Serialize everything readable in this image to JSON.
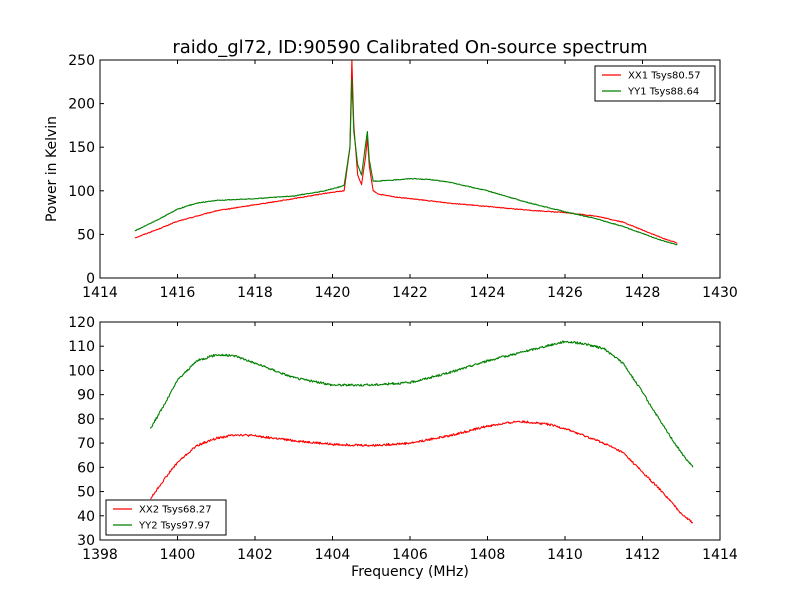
{
  "figure": {
    "title": "raido_gl72, ID:90590 Calibrated On-source spectrum",
    "xlabel": "Frequency (MHz)",
    "top_ylabel": "Power in Kelvin"
  },
  "colors": {
    "xx": "#ff0000",
    "yy": "#008000"
  },
  "chart_data": [
    {
      "type": "line",
      "xlim": [
        1414,
        1430
      ],
      "ylim": [
        0,
        250
      ],
      "xticks": [
        1414,
        1416,
        1418,
        1420,
        1422,
        1424,
        1426,
        1428,
        1430
      ],
      "yticks": [
        0,
        50,
        100,
        150,
        200,
        250
      ],
      "ylabel": "Power in Kelvin",
      "legend_position": "top-right",
      "series": [
        {
          "name": "XX1 Tsys80.57",
          "color": "#ff0000",
          "x": [
            1414.9,
            1415.5,
            1416.0,
            1416.5,
            1417.0,
            1418.0,
            1419.0,
            1419.8,
            1420.3,
            1420.45,
            1420.5,
            1420.55,
            1420.65,
            1420.75,
            1420.85,
            1420.9,
            1420.95,
            1421.05,
            1421.2,
            1421.6,
            1422.0,
            1423.0,
            1424.0,
            1425.0,
            1426.0,
            1426.8,
            1427.5,
            1428.0,
            1428.5,
            1428.9
          ],
          "y": [
            46,
            56,
            65,
            71,
            77,
            84,
            91,
            97,
            100,
            150,
            250,
            175,
            118,
            107,
            138,
            160,
            128,
            100,
            96,
            93,
            91,
            86,
            82,
            78,
            75,
            71,
            64,
            55,
            46,
            40
          ]
        },
        {
          "name": "YY1 Tsys88.64",
          "color": "#008000",
          "x": [
            1414.9,
            1415.5,
            1416.0,
            1416.5,
            1417.0,
            1418.0,
            1419.0,
            1419.8,
            1420.3,
            1420.45,
            1420.5,
            1420.55,
            1420.65,
            1420.75,
            1420.85,
            1420.9,
            1420.95,
            1421.05,
            1421.5,
            1422.0,
            1422.5,
            1423.0,
            1424.0,
            1425.0,
            1426.0,
            1426.8,
            1427.5,
            1428.0,
            1428.5,
            1428.9
          ],
          "y": [
            54,
            67,
            79,
            86,
            89,
            91,
            94,
            100,
            106,
            150,
            228,
            168,
            130,
            118,
            152,
            168,
            135,
            111,
            112,
            114,
            113,
            110,
            100,
            87,
            76,
            68,
            59,
            51,
            43,
            38
          ]
        }
      ]
    },
    {
      "type": "line",
      "xlim": [
        1398,
        1414
      ],
      "ylim": [
        30,
        120
      ],
      "xticks": [
        1398,
        1400,
        1402,
        1404,
        1406,
        1408,
        1410,
        1412,
        1414
      ],
      "yticks": [
        30,
        40,
        50,
        60,
        70,
        80,
        90,
        100,
        110,
        120
      ],
      "xlabel": "Frequency (MHz)",
      "legend_position": "bottom-left",
      "series": [
        {
          "name": "XX2 Tsys68.27",
          "color": "#ff0000",
          "x": [
            1399.3,
            1399.7,
            1400.0,
            1400.5,
            1401.0,
            1401.5,
            1402.0,
            1403.0,
            1404.0,
            1405.0,
            1406.0,
            1407.0,
            1408.0,
            1408.8,
            1409.5,
            1410.0,
            1410.5,
            1411.0,
            1411.5,
            1412.0,
            1412.5,
            1413.0,
            1413.3
          ],
          "y": [
            47,
            56,
            62,
            69,
            72,
            73.5,
            73,
            71,
            69.5,
            69,
            70,
            73,
            77,
            79,
            78,
            76,
            73,
            70,
            66,
            58,
            50,
            41,
            37
          ]
        },
        {
          "name": "YY2 Tsys97.97",
          "color": "#008000",
          "x": [
            1399.3,
            1399.7,
            1400.0,
            1400.5,
            1401.0,
            1401.5,
            1402.0,
            1403.0,
            1404.0,
            1405.0,
            1406.0,
            1407.0,
            1408.0,
            1409.0,
            1409.5,
            1410.0,
            1410.5,
            1411.0,
            1411.5,
            1412.0,
            1412.5,
            1413.0,
            1413.3
          ],
          "y": [
            76,
            87,
            96,
            104,
            106.5,
            106,
            103,
            97,
            94,
            94,
            95,
            99,
            104,
            108,
            110,
            112,
            111,
            109,
            103,
            91,
            78,
            66,
            60
          ]
        }
      ]
    }
  ]
}
